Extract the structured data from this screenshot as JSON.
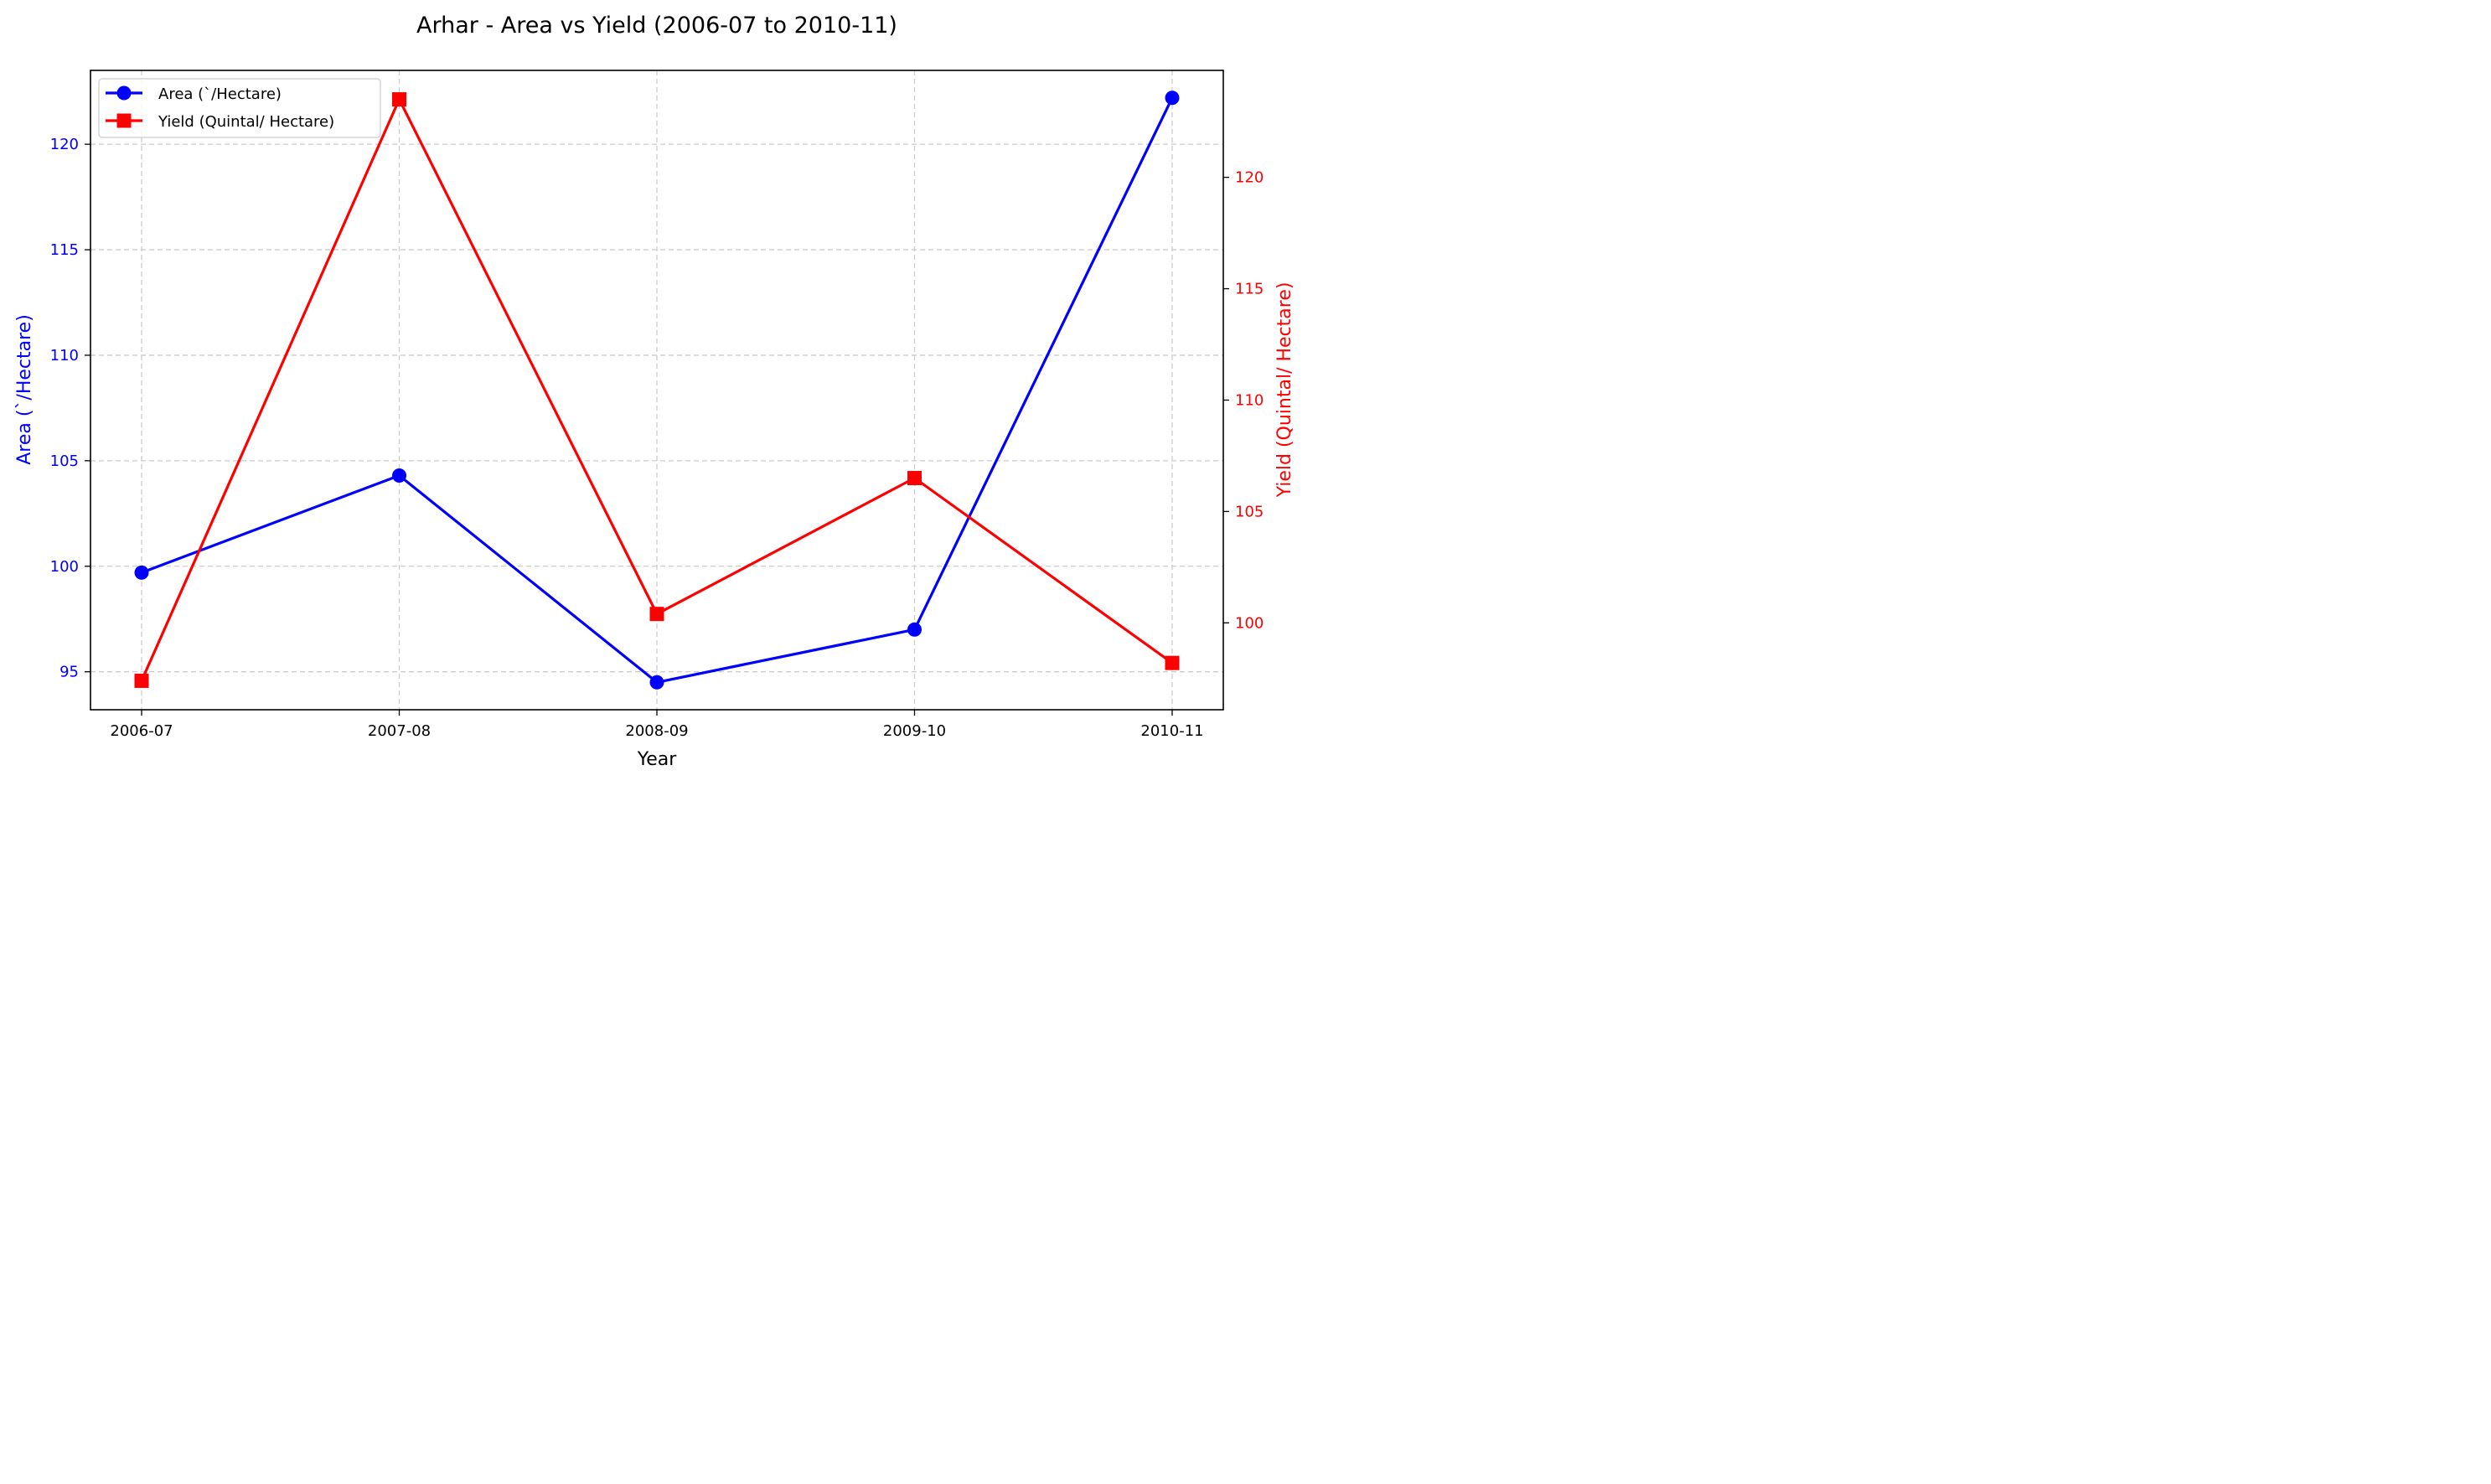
{
  "chart_data": {
    "type": "line",
    "title": "Arhar - Area vs Yield (2006-07 to 2010-11)",
    "xlabel": "Year",
    "ylabel_left": "Area (`/Hectare)",
    "ylabel_right": "Yield (Quintal/ Hectare)",
    "categories": [
      "2006-07",
      "2007-08",
      "2008-09",
      "2009-10",
      "2010-11"
    ],
    "series": [
      {
        "name": "Area (`/Hectare)",
        "axis": "left",
        "color": "#0000ff",
        "marker": "circle",
        "values": [
          99.7,
          104.3,
          94.5,
          97.0,
          122.2
        ]
      },
      {
        "name": "Yield (Quintal/ Hectare)",
        "axis": "right",
        "color": "#ff0000",
        "marker": "square",
        "values": [
          97.4,
          123.5,
          100.4,
          106.5,
          98.2
        ]
      }
    ],
    "ylim_left": [
      93.2,
      123.5
    ],
    "ylim_right": [
      96.1,
      124.8
    ],
    "yticks_left": [
      95,
      100,
      105,
      110,
      115,
      120
    ],
    "yticks_right": [
      100,
      105,
      110,
      115,
      120
    ],
    "grid": true,
    "legend_position": "top-left"
  }
}
